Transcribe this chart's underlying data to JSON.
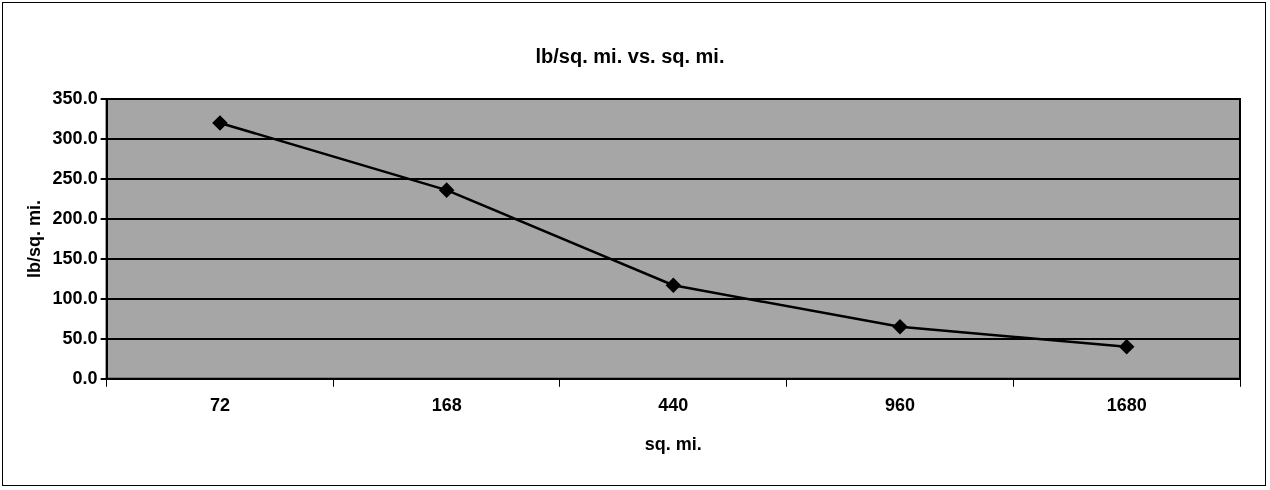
{
  "chart_data": {
    "type": "line",
    "title": "lb/sq. mi. vs. sq. mi.",
    "xlabel": "sq. mi.",
    "ylabel": "lb/sq. mi.",
    "categories": [
      "72",
      "168",
      "440",
      "960",
      "1680"
    ],
    "series": [
      {
        "color": "#000000",
        "values": [
          320,
          236,
          117,
          65,
          40
        ]
      }
    ],
    "ylim": [
      0,
      350
    ],
    "yticks": [
      {
        "value": 0,
        "label": "0.0"
      },
      {
        "value": 50,
        "label": "50.0"
      },
      {
        "value": 100,
        "label": "100.0"
      },
      {
        "value": 150,
        "label": "150.0"
      },
      {
        "value": 200,
        "label": "200.0"
      },
      {
        "value": 250,
        "label": "250.0"
      },
      {
        "value": 300,
        "label": "300.0"
      },
      {
        "value": 350,
        "label": "350.0"
      }
    ],
    "grid": "y",
    "legend": false,
    "marker": "diamond",
    "line_style": "solid"
  }
}
